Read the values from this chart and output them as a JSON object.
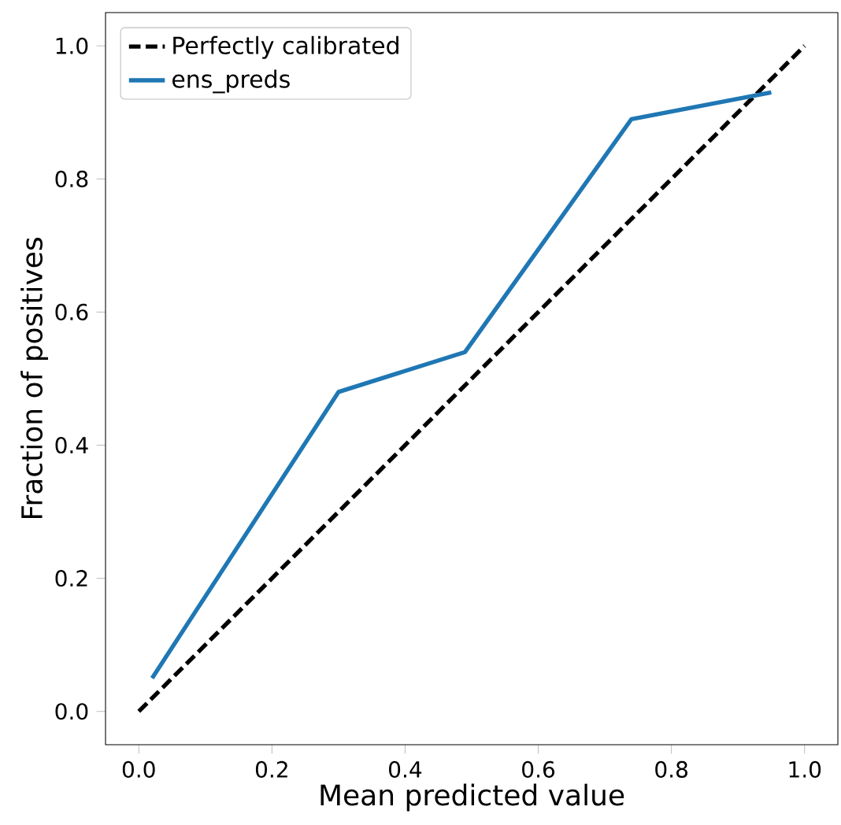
{
  "chart_data": {
    "type": "line",
    "xlabel": "Mean predicted value",
    "ylabel": "Fraction of positives",
    "xlim": [
      -0.05,
      1.05
    ],
    "ylim": [
      -0.05,
      1.05
    ],
    "xticks": [
      {
        "value": 0,
        "label": "0.0"
      },
      {
        "value": 0.2,
        "label": "0.2"
      },
      {
        "value": 0.4,
        "label": "0.4"
      },
      {
        "value": 0.6,
        "label": "0.6"
      },
      {
        "value": 0.8,
        "label": "0.8"
      },
      {
        "value": 1,
        "label": "1.0"
      }
    ],
    "yticks": [
      {
        "value": 0,
        "label": "0.0"
      },
      {
        "value": 0.2,
        "label": "0.2"
      },
      {
        "value": 0.4,
        "label": "0.4"
      },
      {
        "value": 0.6,
        "label": "0.6"
      },
      {
        "value": 0.8,
        "label": "0.8"
      },
      {
        "value": 1,
        "label": "1.0"
      }
    ],
    "legend": "top left",
    "series": [
      {
        "name": "Perfectly calibrated",
        "color": "#000000",
        "line_style": "dashed",
        "x": [
          0,
          1
        ],
        "values": [
          0,
          1
        ]
      },
      {
        "name": "ens_preds",
        "color": "#1f77b4",
        "line_style": "solid",
        "x": [
          0.02,
          0.3,
          0.49,
          0.74,
          0.95
        ],
        "values": [
          0.05,
          0.48,
          0.54,
          0.89,
          0.93
        ]
      }
    ]
  }
}
